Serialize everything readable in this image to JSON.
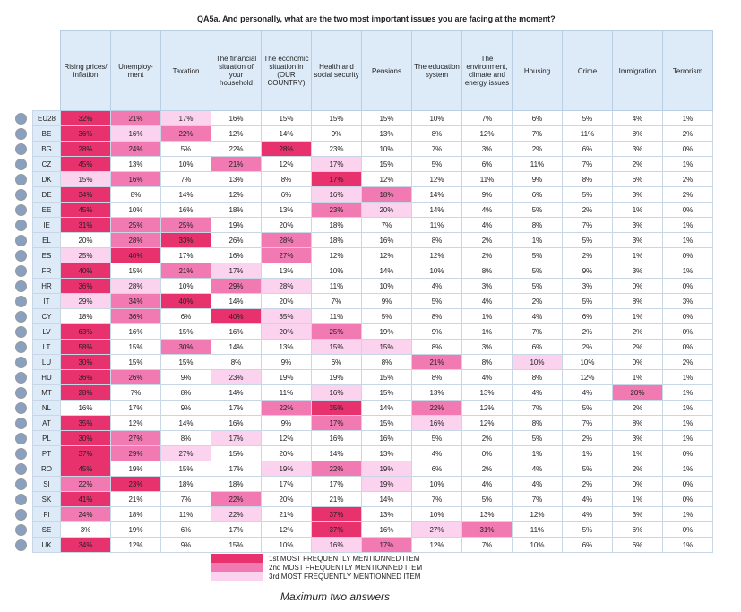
{
  "question": "QA5a. And personally, what are the two most important issues you are facing at the moment?",
  "columns": [
    "Rising prices/ inflation",
    "Unemploy-ment",
    "Taxation",
    "The financial situation of your household",
    "The economic situation in (OUR COUNTRY)",
    "Health and social security",
    "Pensions",
    "The education system",
    "The environment, climate and energy issues",
    "Housing",
    "Crime",
    "Immigration",
    "Terrorism"
  ],
  "rank_colors": [
    "#e8326e",
    "#f27ab2",
    "#fbd3ee"
  ],
  "rows": [
    {
      "country": "EU28",
      "values": [
        "32%",
        "21%",
        "17%",
        "16%",
        "15%",
        "15%",
        "15%",
        "10%",
        "7%",
        "6%",
        "5%",
        "4%",
        "1%"
      ],
      "ranks": [
        1,
        2,
        3,
        null,
        null,
        null,
        null,
        null,
        null,
        null,
        null,
        null,
        null
      ]
    },
    {
      "country": "BE",
      "values": [
        "36%",
        "16%",
        "22%",
        "12%",
        "14%",
        "9%",
        "13%",
        "8%",
        "12%",
        "7%",
        "11%",
        "8%",
        "2%"
      ],
      "ranks": [
        1,
        3,
        2,
        null,
        null,
        null,
        null,
        null,
        null,
        null,
        null,
        null,
        null
      ]
    },
    {
      "country": "BG",
      "values": [
        "28%",
        "24%",
        "5%",
        "22%",
        "28%",
        "23%",
        "10%",
        "7%",
        "3%",
        "2%",
        "6%",
        "3%",
        "0%"
      ],
      "ranks": [
        1,
        2,
        null,
        null,
        1,
        null,
        null,
        null,
        null,
        null,
        null,
        null,
        null
      ]
    },
    {
      "country": "CZ",
      "values": [
        "45%",
        "13%",
        "10%",
        "21%",
        "12%",
        "17%",
        "15%",
        "5%",
        "6%",
        "11%",
        "7%",
        "2%",
        "1%"
      ],
      "ranks": [
        1,
        null,
        null,
        2,
        null,
        3,
        null,
        null,
        null,
        null,
        null,
        null,
        null
      ]
    },
    {
      "country": "DK",
      "values": [
        "15%",
        "16%",
        "7%",
        "13%",
        "8%",
        "17%",
        "12%",
        "12%",
        "11%",
        "9%",
        "8%",
        "6%",
        "2%"
      ],
      "ranks": [
        3,
        2,
        null,
        null,
        null,
        1,
        null,
        null,
        null,
        null,
        null,
        null,
        null
      ]
    },
    {
      "country": "DE",
      "values": [
        "34%",
        "8%",
        "14%",
        "12%",
        "6%",
        "16%",
        "18%",
        "14%",
        "9%",
        "6%",
        "5%",
        "3%",
        "2%"
      ],
      "ranks": [
        1,
        null,
        null,
        null,
        null,
        3,
        2,
        null,
        null,
        null,
        null,
        null,
        null
      ]
    },
    {
      "country": "EE",
      "values": [
        "45%",
        "10%",
        "16%",
        "18%",
        "13%",
        "23%",
        "20%",
        "14%",
        "4%",
        "5%",
        "2%",
        "1%",
        "0%"
      ],
      "ranks": [
        1,
        null,
        null,
        null,
        null,
        2,
        3,
        null,
        null,
        null,
        null,
        null,
        null
      ]
    },
    {
      "country": "IE",
      "values": [
        "31%",
        "25%",
        "25%",
        "19%",
        "20%",
        "18%",
        "7%",
        "11%",
        "4%",
        "8%",
        "7%",
        "3%",
        "1%"
      ],
      "ranks": [
        1,
        2,
        2,
        null,
        null,
        null,
        null,
        null,
        null,
        null,
        null,
        null,
        null
      ]
    },
    {
      "country": "EL",
      "values": [
        "20%",
        "28%",
        "33%",
        "26%",
        "28%",
        "18%",
        "16%",
        "8%",
        "2%",
        "1%",
        "5%",
        "3%",
        "1%"
      ],
      "ranks": [
        null,
        2,
        1,
        null,
        2,
        null,
        null,
        null,
        null,
        null,
        null,
        null,
        null
      ]
    },
    {
      "country": "ES",
      "values": [
        "25%",
        "40%",
        "17%",
        "16%",
        "27%",
        "12%",
        "12%",
        "12%",
        "2%",
        "5%",
        "2%",
        "1%",
        "0%"
      ],
      "ranks": [
        3,
        1,
        null,
        null,
        2,
        null,
        null,
        null,
        null,
        null,
        null,
        null,
        null
      ]
    },
    {
      "country": "FR",
      "values": [
        "40%",
        "15%",
        "21%",
        "17%",
        "13%",
        "10%",
        "14%",
        "10%",
        "8%",
        "5%",
        "9%",
        "3%",
        "1%"
      ],
      "ranks": [
        1,
        null,
        2,
        3,
        null,
        null,
        null,
        null,
        null,
        null,
        null,
        null,
        null
      ]
    },
    {
      "country": "HR",
      "values": [
        "36%",
        "28%",
        "10%",
        "29%",
        "28%",
        "11%",
        "10%",
        "4%",
        "3%",
        "5%",
        "3%",
        "0%",
        "0%"
      ],
      "ranks": [
        1,
        3,
        null,
        2,
        3,
        null,
        null,
        null,
        null,
        null,
        null,
        null,
        null
      ]
    },
    {
      "country": "IT",
      "values": [
        "29%",
        "34%",
        "40%",
        "14%",
        "20%",
        "7%",
        "9%",
        "5%",
        "4%",
        "2%",
        "5%",
        "8%",
        "3%"
      ],
      "ranks": [
        3,
        2,
        1,
        null,
        null,
        null,
        null,
        null,
        null,
        null,
        null,
        null,
        null
      ]
    },
    {
      "country": "CY",
      "values": [
        "18%",
        "36%",
        "6%",
        "40%",
        "35%",
        "11%",
        "5%",
        "8%",
        "1%",
        "4%",
        "6%",
        "1%",
        "0%"
      ],
      "ranks": [
        null,
        2,
        null,
        1,
        3,
        null,
        null,
        null,
        null,
        null,
        null,
        null,
        null
      ]
    },
    {
      "country": "LV",
      "values": [
        "63%",
        "16%",
        "15%",
        "16%",
        "20%",
        "25%",
        "19%",
        "9%",
        "1%",
        "7%",
        "2%",
        "2%",
        "0%"
      ],
      "ranks": [
        1,
        null,
        null,
        null,
        3,
        2,
        null,
        null,
        null,
        null,
        null,
        null,
        null
      ]
    },
    {
      "country": "LT",
      "values": [
        "58%",
        "15%",
        "30%",
        "14%",
        "13%",
        "15%",
        "15%",
        "8%",
        "3%",
        "6%",
        "2%",
        "2%",
        "0%"
      ],
      "ranks": [
        1,
        null,
        2,
        null,
        null,
        3,
        3,
        null,
        null,
        null,
        null,
        null,
        null
      ]
    },
    {
      "country": "LU",
      "values": [
        "30%",
        "15%",
        "15%",
        "8%",
        "9%",
        "6%",
        "8%",
        "21%",
        "8%",
        "10%",
        "10%",
        "0%",
        "2%"
      ],
      "ranks": [
        1,
        null,
        null,
        null,
        null,
        null,
        null,
        2,
        null,
        3,
        null,
        null,
        null
      ]
    },
    {
      "country": "HU",
      "values": [
        "36%",
        "26%",
        "9%",
        "23%",
        "19%",
        "19%",
        "15%",
        "8%",
        "4%",
        "8%",
        "12%",
        "1%",
        "1%"
      ],
      "ranks": [
        1,
        2,
        null,
        3,
        null,
        null,
        null,
        null,
        null,
        null,
        null,
        null,
        null
      ]
    },
    {
      "country": "MT",
      "values": [
        "28%",
        "7%",
        "8%",
        "14%",
        "11%",
        "16%",
        "15%",
        "13%",
        "13%",
        "4%",
        "4%",
        "20%",
        "1%"
      ],
      "ranks": [
        1,
        null,
        null,
        null,
        null,
        3,
        null,
        null,
        null,
        null,
        null,
        2,
        null
      ]
    },
    {
      "country": "NL",
      "values": [
        "16%",
        "17%",
        "9%",
        "17%",
        "22%",
        "35%",
        "14%",
        "22%",
        "12%",
        "7%",
        "5%",
        "2%",
        "1%"
      ],
      "ranks": [
        null,
        null,
        null,
        null,
        2,
        1,
        null,
        2,
        null,
        null,
        null,
        null,
        null
      ]
    },
    {
      "country": "AT",
      "values": [
        "35%",
        "12%",
        "14%",
        "16%",
        "9%",
        "17%",
        "15%",
        "16%",
        "12%",
        "8%",
        "7%",
        "8%",
        "1%"
      ],
      "ranks": [
        1,
        null,
        null,
        null,
        null,
        2,
        null,
        3,
        null,
        null,
        null,
        null,
        null
      ]
    },
    {
      "country": "PL",
      "values": [
        "30%",
        "27%",
        "8%",
        "17%",
        "12%",
        "16%",
        "16%",
        "5%",
        "2%",
        "5%",
        "2%",
        "3%",
        "1%"
      ],
      "ranks": [
        1,
        2,
        null,
        3,
        null,
        null,
        null,
        null,
        null,
        null,
        null,
        null,
        null
      ]
    },
    {
      "country": "PT",
      "values": [
        "37%",
        "29%",
        "27%",
        "15%",
        "20%",
        "14%",
        "13%",
        "4%",
        "0%",
        "1%",
        "1%",
        "1%",
        "0%"
      ],
      "ranks": [
        1,
        2,
        3,
        null,
        null,
        null,
        null,
        null,
        null,
        null,
        null,
        null,
        null
      ]
    },
    {
      "country": "RO",
      "values": [
        "45%",
        "19%",
        "15%",
        "17%",
        "19%",
        "22%",
        "19%",
        "6%",
        "2%",
        "4%",
        "5%",
        "2%",
        "1%"
      ],
      "ranks": [
        1,
        null,
        null,
        null,
        3,
        2,
        3,
        null,
        null,
        null,
        null,
        null,
        null
      ]
    },
    {
      "country": "SI",
      "values": [
        "22%",
        "23%",
        "18%",
        "18%",
        "17%",
        "17%",
        "19%",
        "10%",
        "4%",
        "4%",
        "2%",
        "0%",
        "0%"
      ],
      "ranks": [
        2,
        1,
        null,
        null,
        null,
        null,
        3,
        null,
        null,
        null,
        null,
        null,
        null
      ]
    },
    {
      "country": "SK",
      "values": [
        "41%",
        "21%",
        "7%",
        "22%",
        "20%",
        "21%",
        "14%",
        "7%",
        "5%",
        "7%",
        "4%",
        "1%",
        "0%"
      ],
      "ranks": [
        1,
        null,
        null,
        2,
        null,
        null,
        null,
        null,
        null,
        null,
        null,
        null,
        null
      ]
    },
    {
      "country": "FI",
      "values": [
        "24%",
        "18%",
        "11%",
        "22%",
        "21%",
        "37%",
        "13%",
        "10%",
        "13%",
        "12%",
        "4%",
        "3%",
        "1%"
      ],
      "ranks": [
        2,
        null,
        null,
        3,
        null,
        1,
        null,
        null,
        null,
        null,
        null,
        null,
        null
      ]
    },
    {
      "country": "SE",
      "values": [
        "3%",
        "19%",
        "6%",
        "17%",
        "12%",
        "37%",
        "16%",
        "27%",
        "31%",
        "11%",
        "5%",
        "6%",
        "0%"
      ],
      "ranks": [
        null,
        null,
        null,
        null,
        null,
        1,
        null,
        3,
        2,
        null,
        null,
        null,
        null
      ]
    },
    {
      "country": "UK",
      "values": [
        "34%",
        "12%",
        "9%",
        "15%",
        "10%",
        "16%",
        "17%",
        "12%",
        "7%",
        "10%",
        "6%",
        "6%",
        "1%"
      ],
      "ranks": [
        1,
        null,
        null,
        null,
        null,
        3,
        2,
        null,
        null,
        null,
        null,
        null,
        null
      ]
    }
  ],
  "legend": [
    "1st MOST FREQUENTLY MENTIONNED ITEM",
    "2nd MOST FREQUENTLY MENTIONNED ITEM",
    "3rd MOST FREQUENTLY MENTIONNED ITEM"
  ],
  "note": "Maximum two answers"
}
